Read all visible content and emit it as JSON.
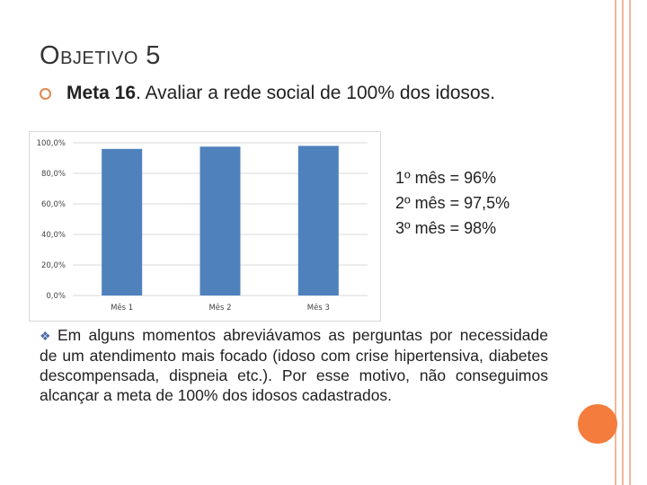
{
  "slide": {
    "title_first": "O",
    "title_rest": "BJETIVO",
    "title_num": "5",
    "bullet_bold": "Meta 16",
    "bullet_text": ". Avaliar a rede social de 100% dos idosos.",
    "info_lines": [
      "1º mês = 96%",
      "2º mês = 97,5%",
      "3º mês = 98%"
    ],
    "paragraph_bullet_icon": "diamond-bullet",
    "paragraph": "Em alguns momentos abreviávamos as perguntas por necessidade de um atendimento mais focado (idoso com crise hipertensiva, diabetes descompensada, dispneia etc.). Por esse motivo, não conseguimos alcançar a meta de 100% dos idosos cadastrados."
  },
  "colors": {
    "bar": "#4f81bd",
    "accent_circle": "#f47c3c",
    "deco_line": "#f2b79a",
    "bullet_ring": "#e0884f"
  },
  "chart_data": {
    "type": "bar",
    "categories": [
      "Mês 1",
      "Mês 2",
      "Mês 3"
    ],
    "values": [
      96.0,
      97.5,
      98.0
    ],
    "y_ticks": [
      "0,0%",
      "20,0%",
      "40,0%",
      "60,0%",
      "80,0%",
      "100,0%"
    ],
    "y_tick_values": [
      0,
      20,
      40,
      60,
      80,
      100
    ],
    "ylim": [
      0,
      100
    ],
    "grid": true,
    "legend": "none"
  }
}
